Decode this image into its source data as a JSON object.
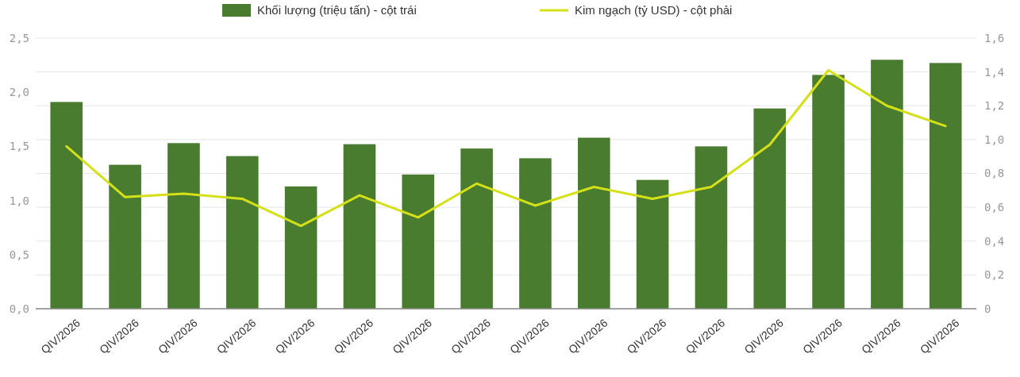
{
  "chart_data": {
    "type": "bar",
    "categories": [
      "QIV/2026",
      "QIV/2026",
      "QIV/2026",
      "QIV/2026",
      "QIV/2026",
      "QIV/2026",
      "QIV/2026",
      "QIV/2026",
      "QIV/2026",
      "QIV/2026",
      "QIV/2026",
      "QIV/2026",
      "QIV/2026",
      "QIV/2026",
      "QIV/2026",
      "QIV/2026"
    ],
    "series": [
      {
        "name": "Khối lượng (triệu tấn) - cột trái",
        "color": "#4a7c2f",
        "values": [
          1.91,
          1.33,
          1.53,
          1.41,
          1.13,
          1.52,
          1.24,
          1.48,
          1.39,
          1.58,
          1.19,
          1.5,
          1.85,
          2.16,
          2.3,
          2.27
        ]
      },
      {
        "name": "Kim ngạch (tỷ USD) - cột phải",
        "color": "#d4e018",
        "type": "line",
        "axis": "y2",
        "values": [
          0.96,
          0.66,
          0.68,
          0.65,
          0.49,
          0.67,
          0.54,
          0.74,
          0.61,
          0.72,
          0.65,
          0.72,
          0.97,
          1.41,
          1.2,
          1.08
        ]
      }
    ],
    "ylim": [
      0,
      2.5
    ],
    "yticks": [
      {
        "value": 0,
        "label": "0,0"
      },
      {
        "value": 0.5,
        "label": "0,5"
      },
      {
        "value": 1,
        "label": "1,0"
      },
      {
        "value": 1.5,
        "label": "1,5"
      },
      {
        "value": 2,
        "label": "2,0"
      },
      {
        "value": 2.5,
        "label": "2,5"
      }
    ],
    "y2lim": [
      0,
      1.6
    ],
    "y2ticks": [
      0,
      {
        "value": 0.2,
        "label": "0,2"
      },
      {
        "value": 0.4,
        "label": "0,4"
      },
      {
        "value": 0.6,
        "label": "0,6"
      },
      {
        "value": 0.8,
        "label": "0,8"
      },
      {
        "value": 1,
        "label": "1,0"
      },
      {
        "value": 1.2,
        "label": "1,2"
      },
      {
        "value": 1.4,
        "label": "1,4"
      },
      {
        "value": 1.6,
        "label": "1,6"
      }
    ],
    "grid": true,
    "legend": "top",
    "marker": "none",
    "line_style": "solid"
  }
}
